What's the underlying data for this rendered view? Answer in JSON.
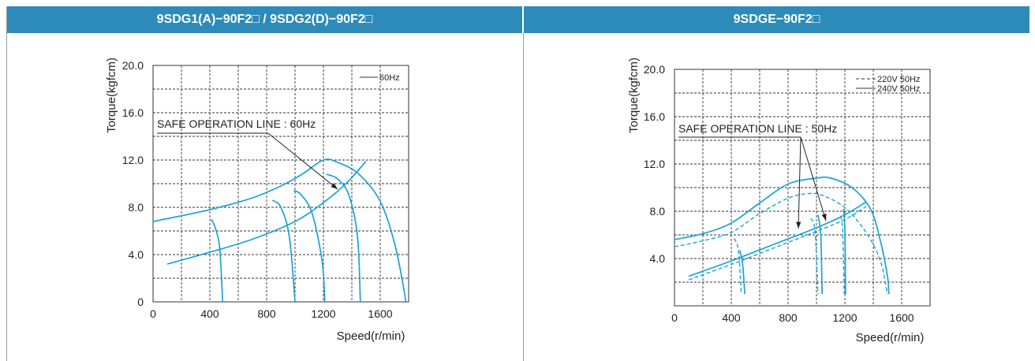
{
  "panels": [
    {
      "title": "9SDG1(A)−90F2□ / 9SDG2(D)−90F2□"
    },
    {
      "title": "9SDGE−90F2□"
    }
  ],
  "chart_data": [
    {
      "type": "line",
      "xlabel": "Speed(r/min)",
      "ylabel": "Torque(kgfcm)",
      "xlim": [
        0,
        1800
      ],
      "ylim": [
        0,
        20
      ],
      "x_ticks": [
        "0",
        "400",
        "800",
        "1200",
        "1600"
      ],
      "y_ticks": [
        "0",
        "4.0",
        "8.0",
        "12.0",
        "16.0",
        "20.0"
      ],
      "grid": true,
      "legend_position": "top-right",
      "legend": [
        {
          "name": "60Hz",
          "style": "solid"
        }
      ],
      "annotation": "SAFE OPERATION LINE : 60Hz",
      "color": "#1aa3d6",
      "series": [
        {
          "name": "60Hz",
          "style": "solid",
          "points": [
            [
              0,
              6.8
            ],
            [
              400,
              7.8
            ],
            [
              700,
              8.8
            ],
            [
              900,
              9.8
            ],
            [
              1050,
              10.8
            ],
            [
              1200,
              12.0
            ],
            [
              1300,
              11.8
            ],
            [
              1450,
              10.8
            ],
            [
              1600,
              8.5
            ],
            [
              1700,
              5
            ],
            [
              1760,
              1.5
            ],
            [
              1780,
              0
            ]
          ]
        },
        {
          "style": "solid",
          "points": [
            [
              410,
              7.0
            ],
            [
              440,
              6.2
            ],
            [
              470,
              4.5
            ],
            [
              490,
              0
            ]
          ]
        },
        {
          "style": "solid",
          "points": [
            [
              840,
              8.6
            ],
            [
              900,
              8.0
            ],
            [
              960,
              5.5
            ],
            [
              1000,
              0
            ]
          ]
        },
        {
          "style": "solid",
          "points": [
            [
              990,
              9.4
            ],
            [
              1040,
              9.1
            ],
            [
              1120,
              7.5
            ],
            [
              1190,
              3.5
            ],
            [
              1210,
              0
            ]
          ]
        },
        {
          "style": "solid",
          "points": [
            [
              1220,
              10.8
            ],
            [
              1300,
              10.4
            ],
            [
              1380,
              9.0
            ],
            [
              1440,
              5.5
            ],
            [
              1460,
              0
            ]
          ]
        },
        {
          "style": "solid",
          "points": [
            [
              100,
              3.2
            ],
            [
              400,
              4.2
            ],
            [
              700,
              5.3
            ],
            [
              1000,
              6.8
            ],
            [
              1200,
              8.4
            ],
            [
              1350,
              9.9
            ],
            [
              1450,
              11.2
            ],
            [
              1500,
              11.9
            ]
          ]
        }
      ]
    },
    {
      "type": "line",
      "xlabel": "Speed(r/min)",
      "ylabel": "Torque(kgfcm)",
      "xlim": [
        0,
        1800
      ],
      "ylim": [
        0,
        20
      ],
      "x_ticks": [
        "0",
        "400",
        "800",
        "1200",
        "1600"
      ],
      "y_ticks": [
        "4.0",
        "8.0",
        "12.0",
        "16.0",
        "20.0"
      ],
      "grid": true,
      "legend_position": "top-right",
      "legend": [
        {
          "name": "220V 50Hz",
          "style": "dashed"
        },
        {
          "name": "240V 50Hz",
          "style": "solid"
        }
      ],
      "annotation": "SAFE OPERATION LINE : 50Hz",
      "color": "#1aa3d6",
      "series": [
        {
          "name": "240V 50Hz",
          "style": "solid",
          "points": [
            [
              0,
              5.6
            ],
            [
              200,
              6.1
            ],
            [
              400,
              7.0
            ],
            [
              600,
              8.7
            ],
            [
              800,
              10.3
            ],
            [
              1000,
              10.8
            ],
            [
              1100,
              10.8
            ],
            [
              1250,
              10.0
            ],
            [
              1380,
              8.2
            ],
            [
              1450,
              5.5
            ],
            [
              1500,
              2.5
            ],
            [
              1510,
              1.0
            ]
          ]
        },
        {
          "name": "220V 50Hz",
          "style": "dashed",
          "points": [
            [
              0,
              5.0
            ],
            [
              200,
              5.5
            ],
            [
              400,
              6.2
            ],
            [
              600,
              7.8
            ],
            [
              800,
              9.1
            ],
            [
              950,
              9.5
            ],
            [
              1050,
              9.3
            ],
            [
              1200,
              8.3
            ],
            [
              1350,
              6.2
            ],
            [
              1450,
              3.8
            ],
            [
              1500,
              1.0
            ]
          ]
        },
        {
          "style": "solid",
          "points": [
            [
              100,
              2.5
            ],
            [
              400,
              3.8
            ],
            [
              700,
              5.2
            ],
            [
              1000,
              6.6
            ],
            [
              1200,
              7.7
            ],
            [
              1350,
              8.8
            ]
          ]
        },
        {
          "style": "dashed",
          "points": [
            [
              100,
              2.2
            ],
            [
              400,
              3.5
            ],
            [
              700,
              4.9
            ],
            [
              1000,
              6.3
            ],
            [
              1200,
              7.3
            ],
            [
              1350,
              8.4
            ]
          ]
        },
        {
          "style": "solid",
          "points": [
            [
              460,
              4.7
            ],
            [
              480,
              3.5
            ],
            [
              495,
              1.0
            ]
          ]
        },
        {
          "style": "dashed",
          "points": [
            [
              420,
              5.7
            ],
            [
              450,
              4.7
            ],
            [
              470,
              1.0
            ]
          ]
        },
        {
          "style": "solid",
          "points": [
            [
              1010,
              7.7
            ],
            [
              1030,
              6.0
            ],
            [
              1040,
              1.0
            ]
          ]
        },
        {
          "style": "dashed",
          "points": [
            [
              960,
              7.4
            ],
            [
              990,
              6.3
            ],
            [
              1010,
              1.0
            ]
          ]
        },
        {
          "style": "solid",
          "points": [
            [
              1190,
              8.2
            ],
            [
              1200,
              6.5
            ],
            [
              1205,
              1.0
            ]
          ]
        },
        {
          "style": "dashed",
          "points": [
            [
              1170,
              7.6
            ],
            [
              1185,
              6.2
            ],
            [
              1195,
              1.0
            ]
          ]
        }
      ]
    }
  ]
}
